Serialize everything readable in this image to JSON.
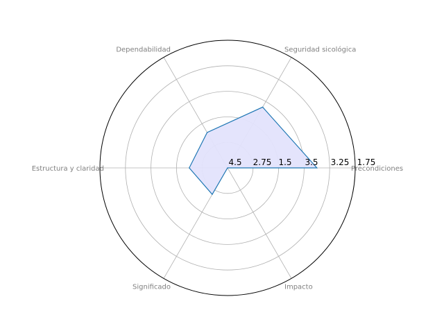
{
  "chart_data": {
    "type": "radar",
    "categories": [
      "Precondiciones",
      "Seguridad sicológica",
      "Dependabilidad",
      "Estructura y claridad",
      "Significado",
      "Impacto"
    ],
    "series": [
      {
        "values": [
          4.5,
          3.75,
          2.6,
          2.5,
          2.2,
          1.0
        ]
      }
    ],
    "radial_tick_labels": [
      "4.5",
      "2.75",
      "1.5",
      "3.5",
      "3.25",
      "1.75"
    ],
    "grid": true,
    "colors": {
      "line": "#1f77b4",
      "fill": "#e3e3fc",
      "grid": "#b0b0b0",
      "frame": "#000000"
    }
  }
}
